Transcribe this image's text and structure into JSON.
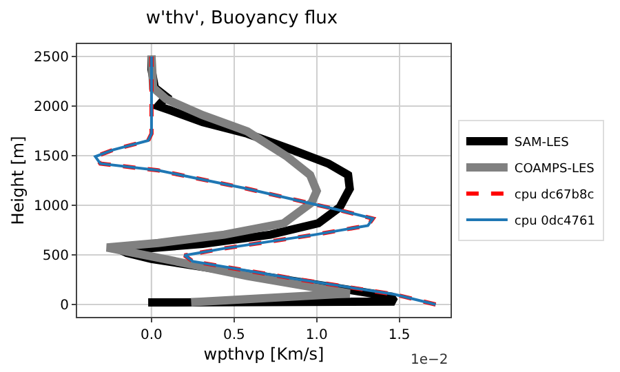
{
  "chart_data": {
    "type": "line",
    "title": "w'thv', Buoyancy flux",
    "xlabel": "wpthvp [Km/s]",
    "ylabel": "Height [m]",
    "annotations": [
      "1e−2"
    ],
    "xlim": [
      -0.45,
      1.81
    ],
    "ylim": [
      -125,
      2625
    ],
    "xticks": [
      {
        "value": 0,
        "label": "0.0"
      },
      {
        "value": 0.5,
        "label": "0.5"
      },
      {
        "value": 1,
        "label": "1.0"
      },
      {
        "value": 1.5,
        "label": "1.5"
      }
    ],
    "yticks": [
      0,
      500,
      1000,
      1500,
      2000,
      2500
    ],
    "grid": true,
    "legend": "right",
    "marker": "none",
    "ref_lines": [
      {
        "axis": "x",
        "value": 0,
        "color": "#666666"
      }
    ],
    "series": [
      {
        "name": "SAM-LES",
        "color": "#000000",
        "line_style": "solid",
        "x": [
          -0.02,
          1.47,
          1.45,
          1.0,
          0.5,
          0.0,
          -0.15,
          -0.18,
          0.31,
          0.72,
          1.01,
          1.14,
          1.2,
          1.19,
          1.07,
          0.85,
          0.58,
          0.31,
          0.12,
          0.04,
          0.09,
          0.02,
          0.0,
          0.0
        ],
        "values": [
          20,
          30,
          80,
          200,
          330,
          460,
          520,
          545,
          611,
          704,
          819,
          981,
          1167,
          1305,
          1421,
          1560,
          1722,
          1838,
          1954,
          2000,
          2093,
          2185,
          2370,
          2509
        ]
      },
      {
        "name": "COAMPS-LES",
        "color": "#808080",
        "line_style": "solid",
        "x": [
          0.24,
          1.2,
          0.58,
          0.04,
          -0.27,
          0.04,
          0.44,
          0.8,
          0.97,
          1.0,
          0.96,
          0.82,
          0.58,
          0.31,
          0.09,
          0.01,
          0.0
        ],
        "values": [
          23,
          111,
          287,
          472,
          574,
          620,
          704,
          819,
          1028,
          1144,
          1306,
          1491,
          1745,
          1908,
          2070,
          2185,
          2509
        ]
      },
      {
        "name": "cpu dc67b8c",
        "color": "#ff0000",
        "line_style": "dashed",
        "x": [
          1.72,
          1.47,
          0.85,
          0.25,
          0.2,
          0.44,
          0.99,
          1.31,
          1.34,
          1.12,
          0.58,
          0.04,
          -0.31,
          -0.34,
          -0.23,
          -0.02,
          0.0,
          0.0
        ],
        "values": [
          0,
          102,
          264,
          435,
          495,
          565,
          704,
          796,
          866,
          958,
          1167,
          1352,
          1421,
          1491,
          1560,
          1653,
          1722,
          2500
        ]
      },
      {
        "name": "cpu 0dc4761",
        "color": "#1f77b4",
        "line_style": "solid",
        "x": [
          1.72,
          1.47,
          0.85,
          0.25,
          0.2,
          0.44,
          0.99,
          1.31,
          1.34,
          1.12,
          0.58,
          0.04,
          -0.31,
          -0.34,
          -0.23,
          -0.02,
          0.0,
          0.0
        ],
        "values": [
          0,
          102,
          264,
          435,
          495,
          565,
          704,
          796,
          866,
          958,
          1167,
          1352,
          1421,
          1491,
          1560,
          1653,
          1722,
          2500
        ]
      }
    ]
  }
}
